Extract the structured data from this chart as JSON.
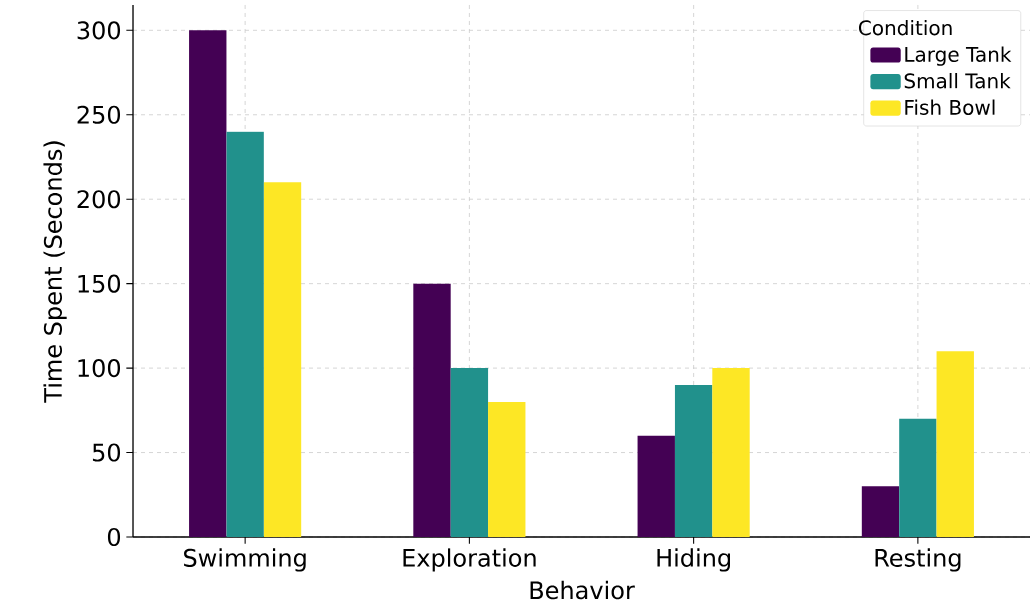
{
  "chart_data": {
    "type": "bar",
    "xlabel": "Behavior",
    "ylabel": "Time Spent (Seconds)",
    "legend_title": "Condition",
    "legend": "top right",
    "grid": true,
    "categories": [
      "Swimming",
      "Exploration",
      "Hiding",
      "Resting"
    ],
    "series": [
      {
        "name": "Large Tank",
        "color": "#440154",
        "values": [
          300,
          150,
          60,
          30
        ]
      },
      {
        "name": "Small Tank",
        "color": "#21918c",
        "values": [
          240,
          100,
          90,
          70
        ]
      },
      {
        "name": "Fish Bowl",
        "color": "#fde725",
        "values": [
          210,
          80,
          100,
          110
        ]
      }
    ],
    "ylim": [
      0,
      315
    ],
    "yticks": [
      0,
      50,
      100,
      150,
      200,
      250,
      300
    ]
  }
}
